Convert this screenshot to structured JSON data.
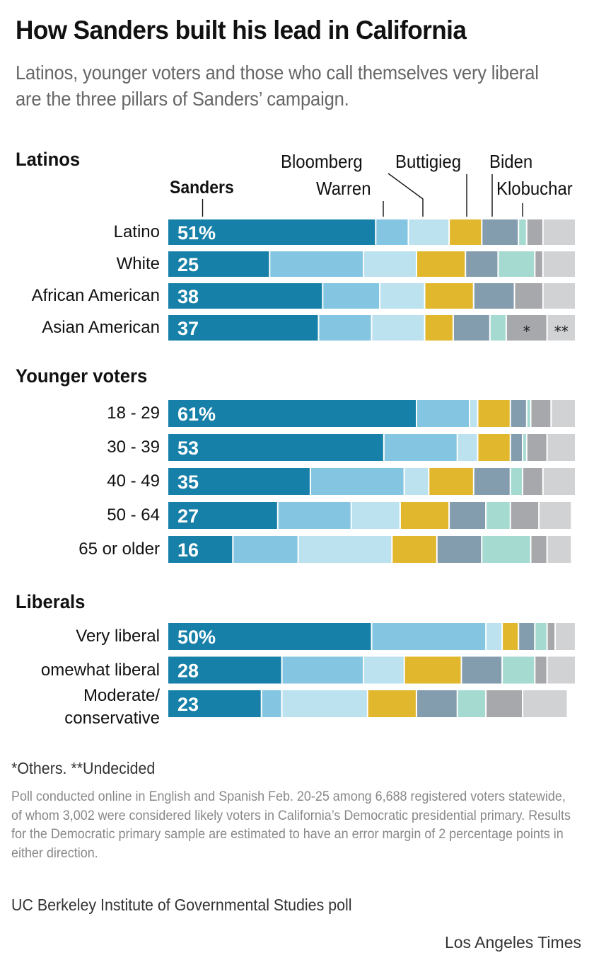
{
  "header": {
    "title": "How Sanders built his lead in California",
    "subtitle": "Latinos, younger voters and those who call themselves very liberal are the three pillars of Sanders’ campaign."
  },
  "legend": {
    "sanders": "Sanders",
    "warren": "Warren",
    "bloomberg": "Bloomberg",
    "buttigieg": "Buttigieg",
    "biden": "Biden",
    "klobuchar": "Klobuchar"
  },
  "colors": {
    "Sanders": "#1780a8",
    "Warren": "#84c6e1",
    "Bloomberg": "#bce2f0",
    "Buttigieg": "#e1b72d",
    "Biden": "#839dae",
    "Klobuchar": "#a5dad1",
    "Others": "#a7a8ab",
    "Undecided": "#d1d2d4"
  },
  "chart_data": {
    "type": "bar",
    "orientation": "horizontal-stacked",
    "title": "How Sanders built his lead in California",
    "xlabel": "",
    "ylabel": "",
    "xlim": [
      0,
      100
    ],
    "unit": "%",
    "series_names": [
      "Sanders",
      "Warren",
      "Bloomberg",
      "Buttigieg",
      "Biden",
      "Klobuchar",
      "Others",
      "Undecided"
    ],
    "segment_marks": {
      "Others": "*",
      "Undecided": "**"
    },
    "groups": [
      {
        "name": "Latinos",
        "rows": [
          {
            "label": "Latino",
            "sanders_label": "51%",
            "values": [
              51,
              8,
              10,
              8,
              9,
              2,
              4,
              8
            ]
          },
          {
            "label": "White",
            "sanders_label": "25",
            "values": [
              25,
              23,
              13,
              12,
              8,
              9,
              2,
              8
            ]
          },
          {
            "label": "African American",
            "sanders_label": "38",
            "values": [
              38,
              14,
              11,
              12,
              10,
              0,
              7,
              8
            ]
          },
          {
            "label": "Asian American",
            "sanders_label": "37",
            "values": [
              37,
              13,
              13,
              7,
              9,
              4,
              10,
              7
            ],
            "show_marks": true
          }
        ]
      },
      {
        "name": "Younger voters",
        "rows": [
          {
            "label": "18 - 29",
            "sanders_label": "61%",
            "values": [
              61,
              13,
              2,
              8,
              4,
              1,
              5,
              6
            ]
          },
          {
            "label": "30 - 39",
            "sanders_label": "53",
            "values": [
              53,
              18,
              5,
              8,
              3,
              1,
              5,
              7
            ]
          },
          {
            "label": "40 - 49",
            "sanders_label": "35",
            "values": [
              35,
              23,
              6,
              11,
              9,
              3,
              5,
              8
            ]
          },
          {
            "label": "50 - 64",
            "sanders_label": "27",
            "values": [
              27,
              18,
              12,
              12,
              9,
              6,
              7,
              8
            ]
          },
          {
            "label": "65 or older",
            "sanders_label": "16",
            "values": [
              16,
              16,
              23,
              11,
              11,
              12,
              4,
              6
            ]
          }
        ]
      },
      {
        "name": "Liberals",
        "rows": [
          {
            "label": "Very liberal",
            "sanders_label": "50%",
            "values": [
              50,
              28,
              4,
              4,
              4,
              3,
              2,
              5
            ]
          },
          {
            "label": "omewhat liberal",
            "sanders_label": "28",
            "values": [
              28,
              20,
              10,
              14,
              10,
              8,
              3,
              7
            ]
          },
          {
            "label": "Moderate/\nconservative",
            "sanders_label": "23",
            "values": [
              23,
              5,
              21,
              12,
              10,
              7,
              9,
              11
            ]
          }
        ]
      }
    ]
  },
  "footer": {
    "footnote": "*Others. **Undecided",
    "notes": "Poll conducted online in English and Spanish Feb. 20-25 among 6,688 registered voters statewide, of whom 3,002  were considered likely voters in California’s Democratic presidential primary. Results for the Democratic primary sample are estimated to have an error margin of 2 percentage points in either direction.",
    "source": "UC Berkeley Institute of Governmental Studies poll",
    "credit": "Los Angeles Times"
  }
}
